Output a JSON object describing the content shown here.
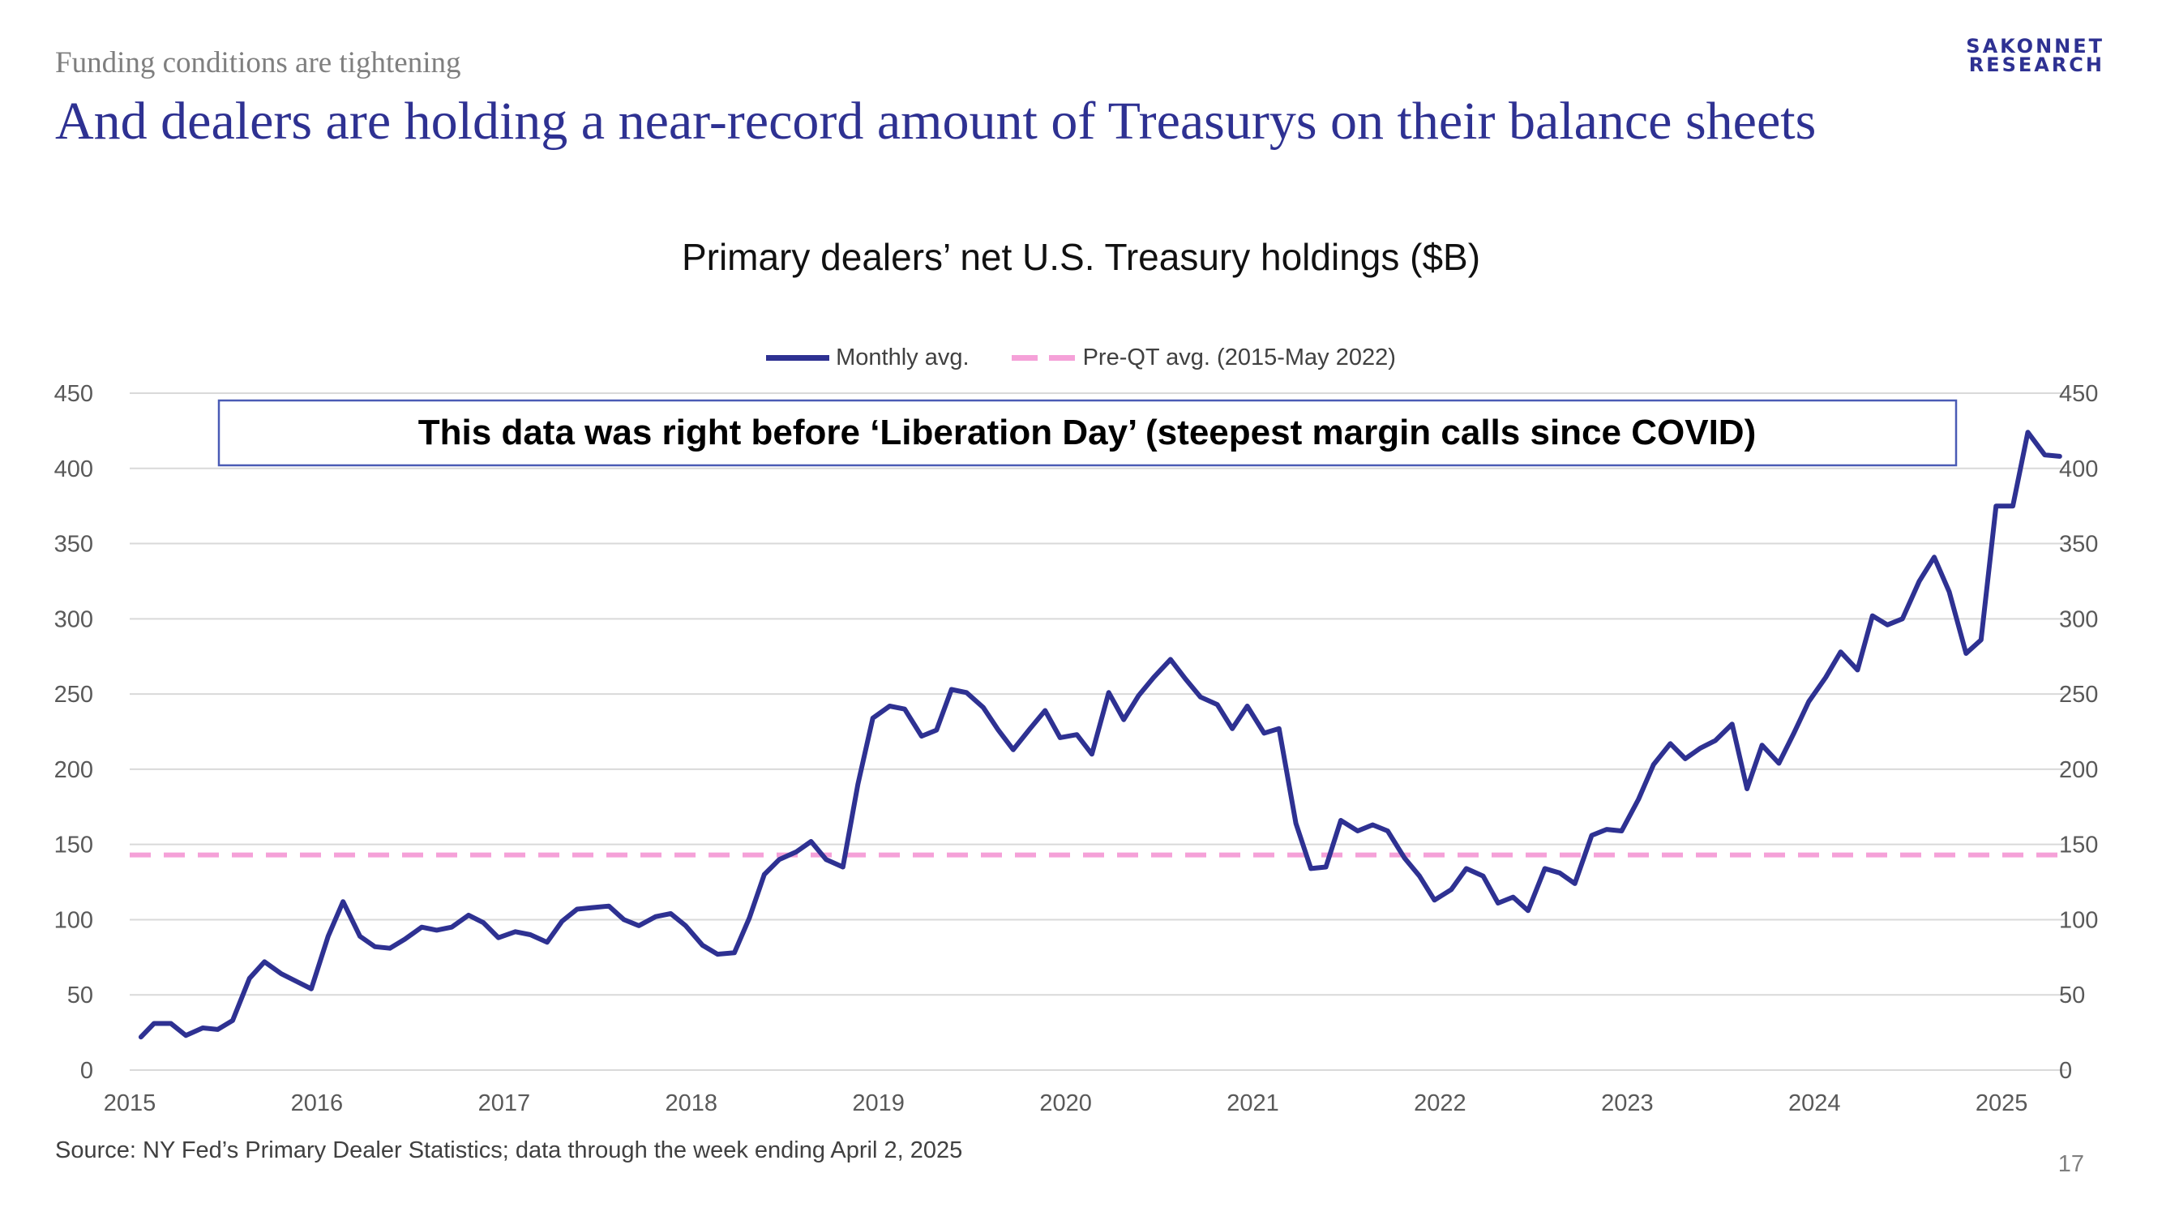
{
  "slide": {
    "kicker": "Funding conditions are tightening",
    "headline": "And dealers are holding a near-record amount of Treasurys on their balance sheets",
    "logo_line1": "SAKONNET",
    "logo_line2": "RESEARCH",
    "source": "Source: NY Fed’s Primary Dealer Statistics; data through the week ending April 2, 2025",
    "page_number": "17"
  },
  "colors": {
    "series": "#2e3192",
    "reference": "#f5a1d8",
    "grid": "#d9d9d9",
    "annotation_border": "#4a5bb5"
  },
  "chart_data": {
    "type": "line",
    "title": "Primary dealers’ net U.S. Treasury holdings ($B)",
    "xlabel": "",
    "ylabel": "",
    "xlim": [
      2015.0,
      2025.35
    ],
    "ylim": [
      0,
      450
    ],
    "yticks": [
      0,
      50,
      100,
      150,
      200,
      250,
      300,
      350,
      400,
      450
    ],
    "xticks": [
      "2015",
      "2016",
      "2017",
      "2018",
      "2019",
      "2020",
      "2021",
      "2022",
      "2023",
      "2024",
      "2025"
    ],
    "grid": true,
    "y_axis_both_sides": true,
    "legend_position": "top-center",
    "legend": [
      "Monthly avg.",
      "Pre-QT avg. (2015-May 2022)"
    ],
    "reference_line": {
      "name": "Pre-QT avg. (2015-May 2022)",
      "value": 143
    },
    "annotation": "This data was right before ‘Liberation Day’ (steepest margin calls since COVID)",
    "series": [
      {
        "name": "Monthly avg.",
        "points": [
          [
            2015.06,
            22
          ],
          [
            2015.13,
            31
          ],
          [
            2015.22,
            31
          ],
          [
            2015.3,
            23
          ],
          [
            2015.39,
            28
          ],
          [
            2015.47,
            27
          ],
          [
            2015.55,
            33
          ],
          [
            2015.64,
            61
          ],
          [
            2015.72,
            72
          ],
          [
            2015.81,
            64
          ],
          [
            2015.89,
            59
          ],
          [
            2015.97,
            54
          ],
          [
            2016.06,
            89
          ],
          [
            2016.14,
            112
          ],
          [
            2016.23,
            89
          ],
          [
            2016.31,
            82
          ],
          [
            2016.39,
            81
          ],
          [
            2016.47,
            87
          ],
          [
            2016.56,
            95
          ],
          [
            2016.64,
            93
          ],
          [
            2016.72,
            95
          ],
          [
            2016.81,
            103
          ],
          [
            2016.89,
            98
          ],
          [
            2016.97,
            88
          ],
          [
            2017.06,
            92
          ],
          [
            2017.14,
            90
          ],
          [
            2017.23,
            85
          ],
          [
            2017.31,
            99
          ],
          [
            2017.39,
            107
          ],
          [
            2017.47,
            108
          ],
          [
            2017.56,
            109
          ],
          [
            2017.64,
            100
          ],
          [
            2017.72,
            96
          ],
          [
            2017.81,
            102
          ],
          [
            2017.89,
            104
          ],
          [
            2017.97,
            96
          ],
          [
            2018.06,
            83
          ],
          [
            2018.14,
            77
          ],
          [
            2018.23,
            78
          ],
          [
            2018.31,
            101
          ],
          [
            2018.39,
            130
          ],
          [
            2018.47,
            140
          ],
          [
            2018.56,
            145
          ],
          [
            2018.64,
            152
          ],
          [
            2018.72,
            140
          ],
          [
            2018.81,
            135
          ],
          [
            2018.89,
            190
          ],
          [
            2018.97,
            234
          ],
          [
            2019.06,
            242
          ],
          [
            2019.14,
            240
          ],
          [
            2019.23,
            222
          ],
          [
            2019.31,
            226
          ],
          [
            2019.39,
            253
          ],
          [
            2019.47,
            251
          ],
          [
            2019.56,
            241
          ],
          [
            2019.64,
            226
          ],
          [
            2019.72,
            213
          ],
          [
            2019.81,
            227
          ],
          [
            2019.89,
            239
          ],
          [
            2019.97,
            221
          ],
          [
            2020.06,
            223
          ],
          [
            2020.14,
            210
          ],
          [
            2020.23,
            251
          ],
          [
            2020.31,
            233
          ],
          [
            2020.39,
            249
          ],
          [
            2020.47,
            261
          ],
          [
            2020.56,
            273
          ],
          [
            2020.64,
            260
          ],
          [
            2020.72,
            248
          ],
          [
            2020.81,
            243
          ],
          [
            2020.89,
            227
          ],
          [
            2020.97,
            242
          ],
          [
            2021.06,
            224
          ],
          [
            2021.14,
            227
          ],
          [
            2021.23,
            164
          ],
          [
            2021.31,
            134
          ],
          [
            2021.39,
            135
          ],
          [
            2021.47,
            166
          ],
          [
            2021.56,
            159
          ],
          [
            2021.64,
            163
          ],
          [
            2021.72,
            159
          ],
          [
            2021.81,
            141
          ],
          [
            2021.89,
            129
          ],
          [
            2021.97,
            113
          ],
          [
            2022.06,
            120
          ],
          [
            2022.14,
            134
          ],
          [
            2022.23,
            129
          ],
          [
            2022.31,
            111
          ],
          [
            2022.39,
            115
          ],
          [
            2022.47,
            106
          ],
          [
            2022.56,
            134
          ],
          [
            2022.64,
            131
          ],
          [
            2022.72,
            124
          ],
          [
            2022.81,
            156
          ],
          [
            2022.89,
            160
          ],
          [
            2022.97,
            159
          ],
          [
            2023.06,
            180
          ],
          [
            2023.14,
            203
          ],
          [
            2023.23,
            217
          ],
          [
            2023.31,
            207
          ],
          [
            2023.39,
            214
          ],
          [
            2023.47,
            219
          ],
          [
            2023.56,
            230
          ],
          [
            2023.64,
            187
          ],
          [
            2023.72,
            216
          ],
          [
            2023.81,
            204
          ],
          [
            2023.89,
            224
          ],
          [
            2023.97,
            245
          ],
          [
            2024.06,
            261
          ],
          [
            2024.14,
            278
          ],
          [
            2024.23,
            266
          ],
          [
            2024.31,
            302
          ],
          [
            2024.39,
            296
          ],
          [
            2024.47,
            300
          ],
          [
            2024.56,
            325
          ],
          [
            2024.64,
            341
          ],
          [
            2024.72,
            318
          ],
          [
            2024.81,
            277
          ],
          [
            2024.89,
            286
          ],
          [
            2024.97,
            375
          ],
          [
            2025.06,
            375
          ],
          [
            2025.14,
            424
          ],
          [
            2025.23,
            409
          ],
          [
            2025.31,
            408
          ]
        ]
      }
    ]
  }
}
